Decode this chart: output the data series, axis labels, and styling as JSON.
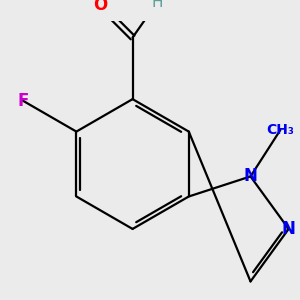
{
  "background_color": "#ebebeb",
  "bond_color": "#000000",
  "atom_colors": {
    "O": "#ff0000",
    "F": "#cc00cc",
    "N": "#0000ee",
    "H": "#5a9e96"
  },
  "figsize": [
    3.0,
    3.0
  ],
  "dpi": 100,
  "bond_lw": 1.6,
  "font_size": 12
}
